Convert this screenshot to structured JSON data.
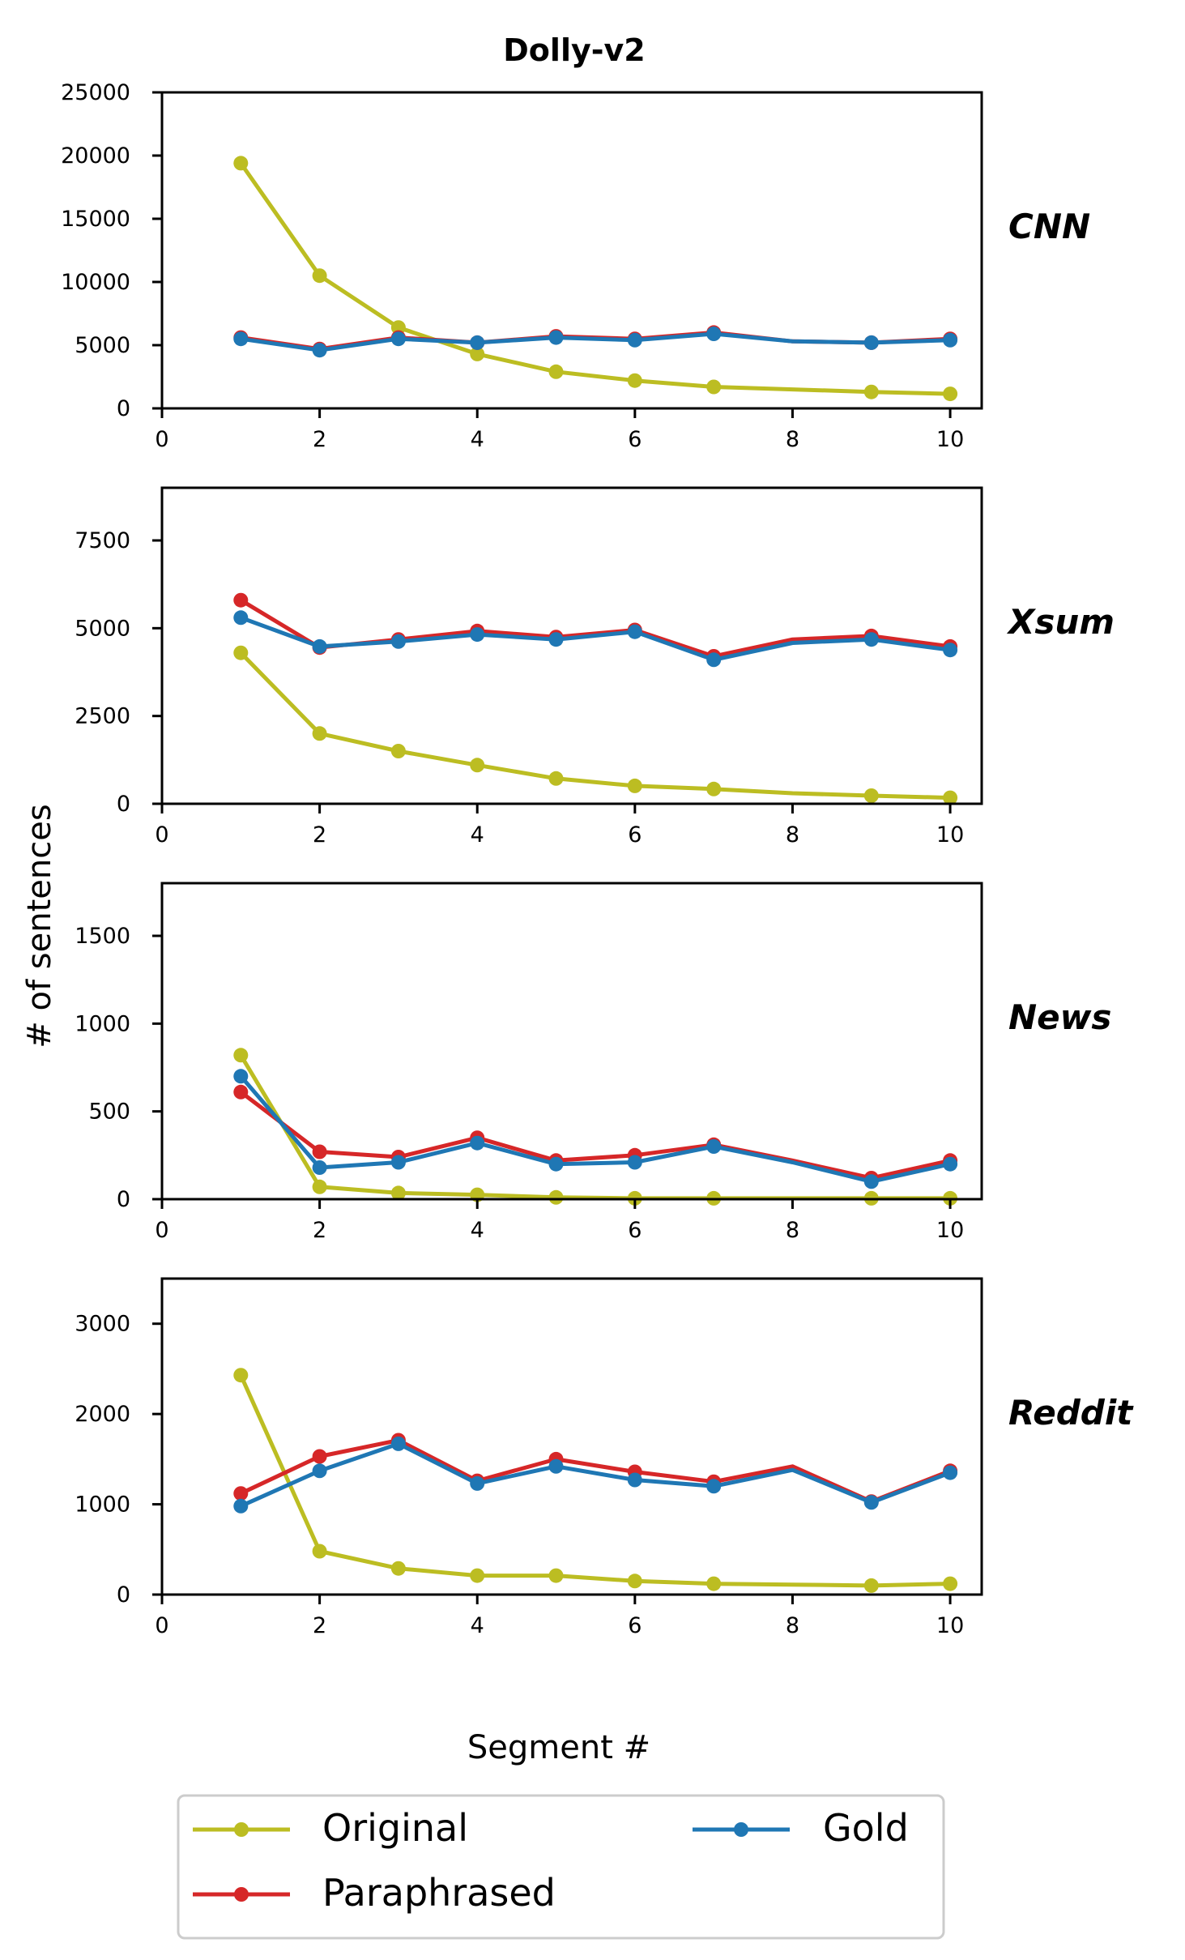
{
  "figure": {
    "title": "Dolly-v2",
    "ylabel": "# of sentences",
    "xlabel": "Segment #"
  },
  "legend": {
    "entries": [
      {
        "label": "Original",
        "color": "#bcbd22"
      },
      {
        "label": "Paraphrased",
        "color": "#d62728"
      },
      {
        "label": "Gold",
        "color": "#1f77b4"
      }
    ],
    "placement": "bottom-center, two columns"
  },
  "chart_data": [
    {
      "type": "line",
      "panel_label": "CNN",
      "x": [
        1,
        2,
        3,
        4,
        5,
        6,
        7,
        8,
        9,
        10
      ],
      "xlim": [
        0,
        10.4
      ],
      "xticks": [
        0,
        2,
        4,
        6,
        8,
        10
      ],
      "ylim": [
        0,
        25000
      ],
      "yticks": [
        0,
        5000,
        10000,
        15000,
        20000,
        25000
      ],
      "series": [
        {
          "name": "Original",
          "color": "#bcbd22",
          "values": [
            19400,
            10500,
            6400,
            4300,
            2900,
            2200,
            1700,
            1500,
            1300,
            1150
          ],
          "markers": [
            1,
            2,
            3,
            4,
            5,
            6,
            7,
            9,
            10
          ]
        },
        {
          "name": "Paraphrased",
          "color": "#d62728",
          "values": [
            5600,
            4700,
            5600,
            5200,
            5700,
            5500,
            6000,
            5300,
            5200,
            5500
          ],
          "markers": [
            1,
            2,
            3,
            4,
            5,
            6,
            7,
            9,
            10
          ]
        },
        {
          "name": "Gold",
          "color": "#1f77b4",
          "values": [
            5500,
            4600,
            5500,
            5200,
            5600,
            5400,
            5900,
            5300,
            5200,
            5400
          ],
          "markers": [
            1,
            2,
            3,
            4,
            5,
            6,
            7,
            9,
            10
          ]
        }
      ]
    },
    {
      "type": "line",
      "panel_label": "Xsum",
      "x": [
        1,
        2,
        3,
        4,
        5,
        6,
        7,
        8,
        9,
        10
      ],
      "xlim": [
        0,
        10.4
      ],
      "xticks": [
        0,
        2,
        4,
        6,
        8,
        10
      ],
      "ylim": [
        0,
        9000
      ],
      "yticks": [
        0,
        2500,
        5000,
        7500
      ],
      "series": [
        {
          "name": "Original",
          "color": "#bcbd22",
          "values": [
            4300,
            2000,
            1500,
            1100,
            720,
            510,
            420,
            300,
            230,
            170
          ],
          "markers": [
            1,
            2,
            3,
            4,
            5,
            6,
            7,
            9,
            10
          ]
        },
        {
          "name": "Paraphrased",
          "color": "#d62728",
          "values": [
            5800,
            4450,
            4680,
            4920,
            4750,
            4950,
            4200,
            4680,
            4780,
            4480
          ],
          "markers": [
            1,
            2,
            3,
            4,
            5,
            6,
            7,
            9,
            10
          ]
        },
        {
          "name": "Gold",
          "color": "#1f77b4",
          "values": [
            5300,
            4480,
            4620,
            4820,
            4680,
            4900,
            4100,
            4580,
            4680,
            4380
          ],
          "markers": [
            1,
            2,
            3,
            4,
            5,
            6,
            7,
            9,
            10
          ]
        }
      ]
    },
    {
      "type": "line",
      "panel_label": "News",
      "x": [
        1,
        2,
        3,
        4,
        5,
        6,
        7,
        8,
        9,
        10
      ],
      "xlim": [
        0,
        10.4
      ],
      "xticks": [
        0,
        2,
        4,
        6,
        8,
        10
      ],
      "ylim": [
        0,
        1800
      ],
      "yticks": [
        0,
        500,
        1000,
        1500
      ],
      "series": [
        {
          "name": "Original",
          "color": "#bcbd22",
          "values": [
            820,
            70,
            35,
            25,
            10,
            5,
            5,
            5,
            5,
            5
          ],
          "markers": [
            1,
            2,
            3,
            4,
            5,
            6,
            7,
            9,
            10
          ]
        },
        {
          "name": "Paraphrased",
          "color": "#d62728",
          "values": [
            610,
            270,
            240,
            350,
            220,
            250,
            310,
            220,
            120,
            220
          ],
          "markers": [
            1,
            2,
            3,
            4,
            5,
            6,
            7,
            9,
            10
          ]
        },
        {
          "name": "Gold",
          "color": "#1f77b4",
          "values": [
            700,
            180,
            210,
            320,
            200,
            210,
            300,
            210,
            100,
            200
          ],
          "markers": [
            1,
            2,
            3,
            4,
            5,
            6,
            7,
            9,
            10
          ]
        }
      ]
    },
    {
      "type": "line",
      "panel_label": "Reddit",
      "x": [
        1,
        2,
        3,
        4,
        5,
        6,
        7,
        8,
        9,
        10
      ],
      "xlim": [
        0,
        10.4
      ],
      "xticks": [
        0,
        2,
        4,
        6,
        8,
        10
      ],
      "ylim": [
        0,
        3500
      ],
      "yticks": [
        0,
        1000,
        2000,
        3000
      ],
      "series": [
        {
          "name": "Original",
          "color": "#bcbd22",
          "values": [
            2430,
            480,
            290,
            210,
            210,
            150,
            120,
            110,
            100,
            120
          ],
          "markers": [
            1,
            2,
            3,
            4,
            5,
            6,
            7,
            9,
            10
          ]
        },
        {
          "name": "Paraphrased",
          "color": "#d62728",
          "values": [
            1120,
            1530,
            1710,
            1260,
            1500,
            1360,
            1250,
            1420,
            1030,
            1370
          ],
          "markers": [
            1,
            2,
            3,
            4,
            5,
            6,
            7,
            9,
            10
          ]
        },
        {
          "name": "Gold",
          "color": "#1f77b4",
          "values": [
            980,
            1370,
            1670,
            1230,
            1420,
            1270,
            1200,
            1380,
            1020,
            1350
          ],
          "markers": [
            1,
            2,
            3,
            4,
            5,
            6,
            7,
            9,
            10
          ]
        }
      ]
    }
  ]
}
